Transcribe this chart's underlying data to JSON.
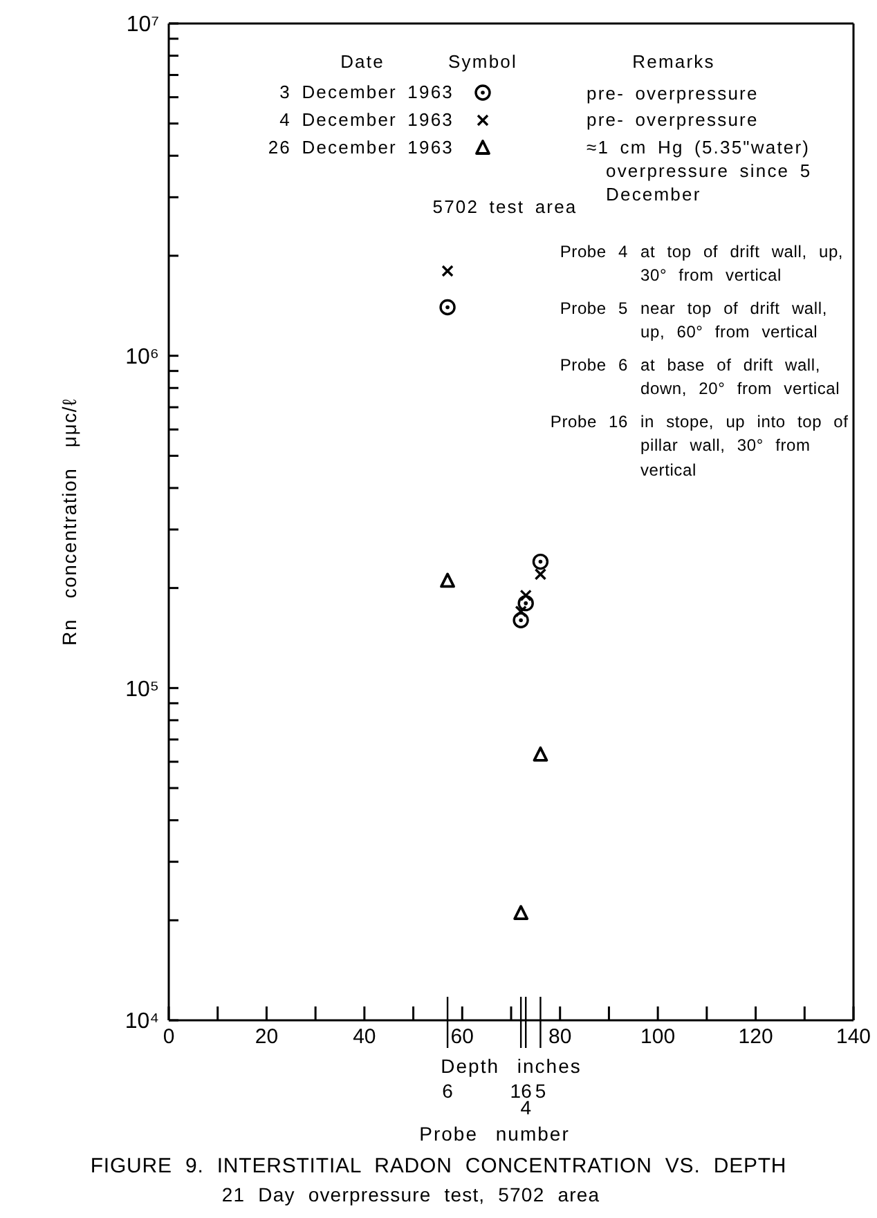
{
  "chart_data": {
    "type": "scatter",
    "title": "FIGURE 9. INTERSTITIAL RADON CONCENTRATION VS. DEPTH",
    "subtitle": "21 Day overpressure test, 5702 area",
    "xlabel": "Depth inches",
    "ylabel": "Rn concentration μμc/ℓ",
    "x": [
      57,
      72,
      73,
      76
    ],
    "series": [
      {
        "name": "3 December 1963",
        "color": "#000000",
        "marker": "circle",
        "values": [
          1400000,
          160000,
          180000,
          240000
        ]
      },
      {
        "name": "4 December 1963",
        "color": "#000000",
        "marker": "cross",
        "values": [
          1800000,
          170000,
          190000,
          220000
        ]
      },
      {
        "name": "26 December 1963",
        "color": "#000000",
        "marker": "triangle",
        "values": [
          210000,
          21000,
          null,
          63000
        ]
      }
    ],
    "xlim": [
      0,
      140
    ],
    "xticks": [
      0,
      {
        "value": 10,
        "label": null
      },
      20,
      {
        "value": 30,
        "label": null
      },
      40,
      {
        "value": 50,
        "label": null
      },
      60,
      {
        "value": 70,
        "label": null
      },
      80,
      {
        "value": 90,
        "label": null
      },
      100,
      {
        "value": 110,
        "label": null
      },
      120,
      {
        "value": 130,
        "label": null
      },
      140
    ],
    "ylim": [
      10000,
      10000000
    ],
    "yticks": [
      {
        "value": 10000,
        "label": "10⁴"
      },
      {
        "value": 20000,
        "label": null
      },
      {
        "value": 30000,
        "label": null
      },
      {
        "value": 40000,
        "label": null
      },
      {
        "value": 50000,
        "label": null
      },
      {
        "value": 60000,
        "label": null
      },
      {
        "value": 70000,
        "label": null
      },
      {
        "value": 80000,
        "label": null
      },
      {
        "value": 90000,
        "label": null
      },
      {
        "value": 100000,
        "label": "10⁵"
      },
      {
        "value": 200000,
        "label": null
      },
      {
        "value": 300000,
        "label": null
      },
      {
        "value": 400000,
        "label": null
      },
      {
        "value": 500000,
        "label": null
      },
      {
        "value": 600000,
        "label": null
      },
      {
        "value": 700000,
        "label": null
      },
      {
        "value": 800000,
        "label": null
      },
      {
        "value": 900000,
        "label": null
      },
      {
        "value": 1000000,
        "label": "10⁶"
      },
      {
        "value": 2000000,
        "label": null
      },
      {
        "value": 3000000,
        "label": null
      },
      {
        "value": 4000000,
        "label": null
      },
      {
        "value": 5000000,
        "label": null
      },
      {
        "value": 6000000,
        "label": null
      },
      {
        "value": 7000000,
        "label": null
      },
      {
        "value": 8000000,
        "label": null
      },
      {
        "value": 9000000,
        "label": null
      },
      {
        "value": 10000000,
        "label": "10⁷"
      }
    ],
    "log": true,
    "legend": "top",
    "annotations": [
      "Date",
      "Symbol",
      "Remarks",
      "pre- overpressure",
      "pre- overpressure",
      "≈1 cm Hg (5.35\"water) overpressure since 5 December",
      "5702 test area",
      "Probe 4 at top of drift wall, up, 30° from vertical",
      "Probe 5 near top of drift wall, up, 60° from vertical",
      "Probe 6 at base of drift wall, down, 20° from vertical",
      "Probe 16 in stope, up into top of pillar wall, 30° from vertical",
      "6",
      "16",
      "4",
      "5",
      "Probe number"
    ]
  }
}
